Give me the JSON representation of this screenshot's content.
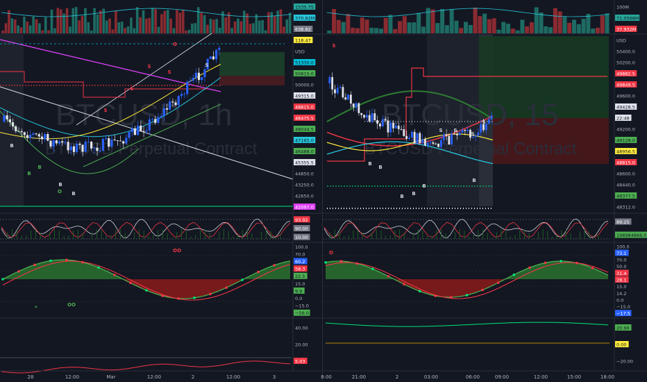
{
  "colors": {
    "bg": "#131722",
    "up": "#26a69a",
    "down": "#ef5350",
    "candle_up": "#2962ff",
    "yellow": "#ffeb3b",
    "cyan": "#26c6da",
    "magenta": "#e040fb",
    "green": "#4caf50",
    "lime": "#00e676",
    "red": "#f23645",
    "white": "#d1d4dc",
    "orange": "#ff9800",
    "olive": "#b8860b"
  },
  "left": {
    "watermark_symbol": "BTCUSD, 1h",
    "watermark_desc": "BTCUSD Perpetual Contract",
    "price_labels": [
      {
        "v": "1535.75",
        "c": "#26a69a"
      },
      {
        "v": "370.82M",
        "c": "#26c6da"
      },
      {
        "v": "638.82",
        "c": "#787b86"
      },
      {
        "v": "118.47",
        "c": "#ffeb3b"
      },
      {
        "v": "USD",
        "c": "none"
      },
      {
        "v": "51330.0",
        "c": "#00bcd4"
      },
      {
        "v": "50815.0",
        "c": "#4caf50"
      },
      {
        "v": "50000.0",
        "c": "none"
      },
      {
        "v": "49315.0",
        "c": "#e0e3eb"
      },
      {
        "v": "48815.0",
        "c": "#f23645"
      },
      {
        "v": "48475.5",
        "c": "#f23645"
      },
      {
        "v": "48044.5",
        "c": "#4caf50"
      },
      {
        "v": "47165.0",
        "c": "#26c6da"
      },
      {
        "v": "46488.0",
        "c": "#4caf50"
      },
      {
        "v": "45355.5",
        "c": "#e0e3eb"
      },
      {
        "v": "44850.0",
        "c": "none"
      },
      {
        "v": "43250.0",
        "c": "none"
      },
      {
        "v": "42650.0",
        "c": "none"
      },
      {
        "v": "42097.0",
        "c": "#e040fb"
      }
    ],
    "osc1_labels": [
      {
        "v": "93.92",
        "c": "#f23645"
      },
      {
        "v": "90.00",
        "c": "#787b86"
      },
      {
        "v": "10.00",
        "c": "#787b86"
      }
    ],
    "osc2_labels": [
      {
        "v": "100.0",
        "c": "none"
      },
      {
        "v": "70.0",
        "c": "none"
      },
      {
        "v": "60.2",
        "c": "#2962ff"
      },
      {
        "v": "58.3",
        "c": "#f23645"
      },
      {
        "v": "22.5",
        "c": "#4caf50"
      },
      {
        "v": "15.0",
        "c": "none"
      },
      {
        "v": "9.9",
        "c": "#4caf50"
      },
      {
        "v": "0.0",
        "c": "none"
      },
      {
        "v": "−15.0",
        "c": "none"
      },
      {
        "v": "−56.0",
        "c": "#4caf50"
      }
    ],
    "osc3_labels": [
      {
        "v": "40.00",
        "c": "none"
      },
      {
        "v": "20.00",
        "c": "none"
      },
      {
        "v": "5.03",
        "c": "#f23645"
      }
    ],
    "time_labels": [
      "28",
      "12:00",
      "Mar",
      "12:00",
      "2",
      "12:00",
      "3"
    ],
    "signals": [
      {
        "t": "S",
        "c": "#f23645"
      },
      {
        "t": "S",
        "c": "#f23645"
      },
      {
        "t": "S",
        "c": "#f23645"
      },
      {
        "t": "S",
        "c": "#f23645"
      },
      {
        "t": "S",
        "c": "#d1d4dc"
      },
      {
        "t": "B",
        "c": "#4caf50"
      },
      {
        "t": "B",
        "c": "#4caf50"
      },
      {
        "t": "B",
        "c": "#d1d4dc"
      },
      {
        "t": "B",
        "c": "#d1d4dc"
      },
      {
        "t": "B",
        "c": "#d1d4dc"
      },
      {
        "t": "O",
        "c": "#f23645"
      },
      {
        "t": "O",
        "c": "#4caf50"
      },
      {
        "t": "OO",
        "c": "#f23645"
      },
      {
        "t": "OO",
        "c": "#4caf50"
      },
      {
        "t": "*",
        "c": "#4caf50"
      }
    ]
  },
  "right": {
    "watermark_symbol": "BTCUSD, 15",
    "watermark_desc": "BTCUSD Perpetual Contract",
    "price_labels": [
      {
        "v": "100M",
        "c": "none"
      },
      {
        "v": "71.0568M",
        "c": "#26a69a"
      },
      {
        "v": "37.932M",
        "c": "#f23645"
      },
      {
        "v": "USD",
        "c": "none"
      },
      {
        "v": "50400.0",
        "c": "none"
      },
      {
        "v": "50200.0",
        "c": "none"
      },
      {
        "v": "49882.5",
        "c": "#f23645"
      },
      {
        "v": "49849.5",
        "c": "#f23645"
      },
      {
        "v": "49600.0",
        "c": "none"
      },
      {
        "v": "49428.5",
        "c": "#e0e3eb"
      },
      {
        "v": "22:48",
        "c": "#e0e3eb"
      },
      {
        "v": "49200.0",
        "c": "none"
      },
      {
        "v": "49128.0",
        "c": "#4caf50"
      },
      {
        "v": "48956.5",
        "c": "#ffeb3b"
      },
      {
        "v": "48815.0",
        "c": "#f23645"
      },
      {
        "v": "48600.0",
        "c": "none"
      },
      {
        "v": "48440.0",
        "c": "none"
      },
      {
        "v": "48377.5",
        "c": "#4caf50"
      },
      {
        "v": "48312.0",
        "c": "none"
      }
    ],
    "osc1_labels": [
      {
        "v": "89.25",
        "c": "#787b86"
      },
      {
        "v": "198984866.0",
        "c": "#4caf50"
      }
    ],
    "osc2_labels": [
      {
        "v": "100.0",
        "c": "none"
      },
      {
        "v": "73.1",
        "c": "#2962ff"
      },
      {
        "v": "70.0",
        "c": "none"
      },
      {
        "v": "50.0",
        "c": "none"
      },
      {
        "v": "31.4",
        "c": "#f23645"
      },
      {
        "v": "28.1",
        "c": "#f23645"
      },
      {
        "v": "15.0",
        "c": "none"
      },
      {
        "v": "14.2",
        "c": "none"
      },
      {
        "v": "0.0",
        "c": "none"
      },
      {
        "v": "−15.0",
        "c": "none"
      },
      {
        "v": "−17.5",
        "c": "#2962ff"
      }
    ],
    "osc3_labels": [
      {
        "v": "20.90",
        "c": "#4caf50"
      },
      {
        "v": "0.00",
        "c": "#ffeb3b"
      },
      {
        "v": "−20.00",
        "c": "none"
      }
    ],
    "time_labels": [
      "8:00",
      "21:00",
      "2",
      "03:00",
      "06:00",
      "09:00",
      "12:00",
      "15:00",
      "18:00"
    ],
    "signals": [
      {
        "t": "S",
        "c": "#f23645"
      },
      {
        "t": "S",
        "c": "#d1d4dc"
      },
      {
        "t": "S",
        "c": "#d1d4dc"
      },
      {
        "t": "S",
        "c": "#d1d4dc"
      },
      {
        "t": "S",
        "c": "#d1d4dc"
      },
      {
        "t": "B",
        "c": "#d1d4dc"
      },
      {
        "t": "B",
        "c": "#d1d4dc"
      },
      {
        "t": "B",
        "c": "#d1d4dc"
      },
      {
        "t": "B",
        "c": "#d1d4dc"
      },
      {
        "t": "B",
        "c": "#d1d4dc"
      },
      {
        "t": "B",
        "c": "#d1d4dc"
      },
      {
        "t": "O",
        "c": "#f23645"
      }
    ]
  }
}
